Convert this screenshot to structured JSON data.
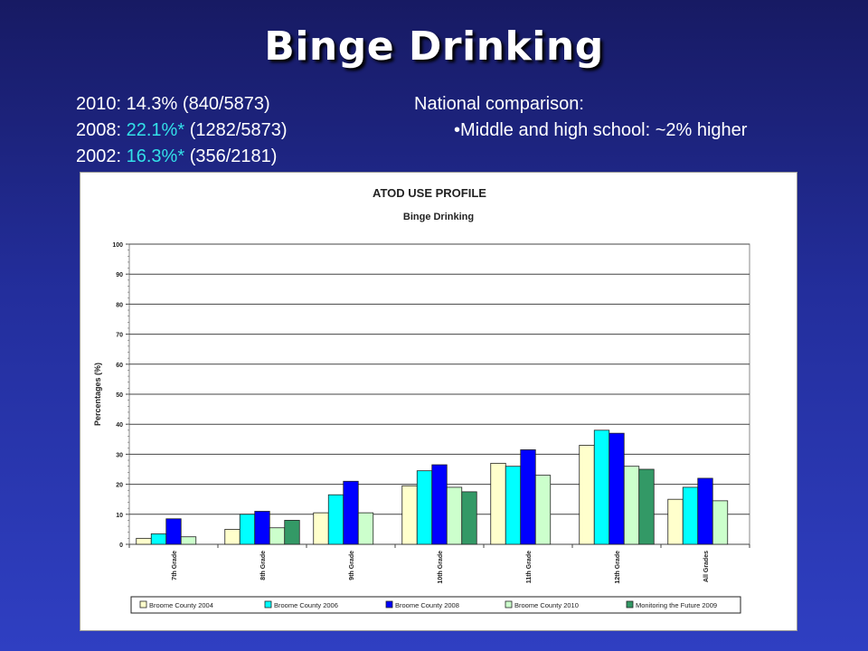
{
  "slide_title": "Binge Drinking",
  "stats": [
    {
      "year": "2010:",
      "value": "14.3%",
      "count": "(840/5873)",
      "highlight": false
    },
    {
      "year": "2008:",
      "value": "22.1%*",
      "count": "(1282/5873)",
      "highlight": true
    },
    {
      "year": "2002:",
      "value": "16.3%*",
      "count": "(356/2181)",
      "highlight": true
    }
  ],
  "national": {
    "heading": "National comparison:",
    "bullet": "•Middle and high school: ~2% higher"
  },
  "chart_data": {
    "type": "bar",
    "title": "ATOD USE PROFILE",
    "subtitle": "Binge Drinking",
    "ylabel": "Percentages (%)",
    "xlabel": "",
    "ylim": [
      0,
      100
    ],
    "yticks": [
      0,
      10,
      20,
      30,
      40,
      50,
      60,
      70,
      80,
      90,
      100
    ],
    "grid": true,
    "legend_position": "bottom",
    "categories": [
      "7th Grade",
      "8th Grade",
      "9th Grade",
      "10th Grade",
      "11th Grade",
      "12th Grade",
      "All Grades"
    ],
    "series": [
      {
        "name": "Broome County 2004",
        "color": "#ffffcc",
        "values": [
          2,
          5,
          10.5,
          19.5,
          27,
          33,
          15
        ]
      },
      {
        "name": "Broome County 2006",
        "color": "#00ffff",
        "values": [
          3.5,
          10,
          16.5,
          24.5,
          26,
          38,
          19
        ]
      },
      {
        "name": "Broome County 2008",
        "color": "#0000ff",
        "values": [
          8.5,
          11,
          21,
          26.5,
          31.5,
          37,
          22
        ]
      },
      {
        "name": "Broome County 2010",
        "color": "#ccffcc",
        "values": [
          2.5,
          5.5,
          10.5,
          19,
          23,
          26,
          14.5
        ]
      },
      {
        "name": "Monitoring the Future 2009",
        "color": "#339966",
        "values": [
          null,
          8,
          null,
          17.5,
          null,
          25,
          null
        ]
      }
    ]
  }
}
